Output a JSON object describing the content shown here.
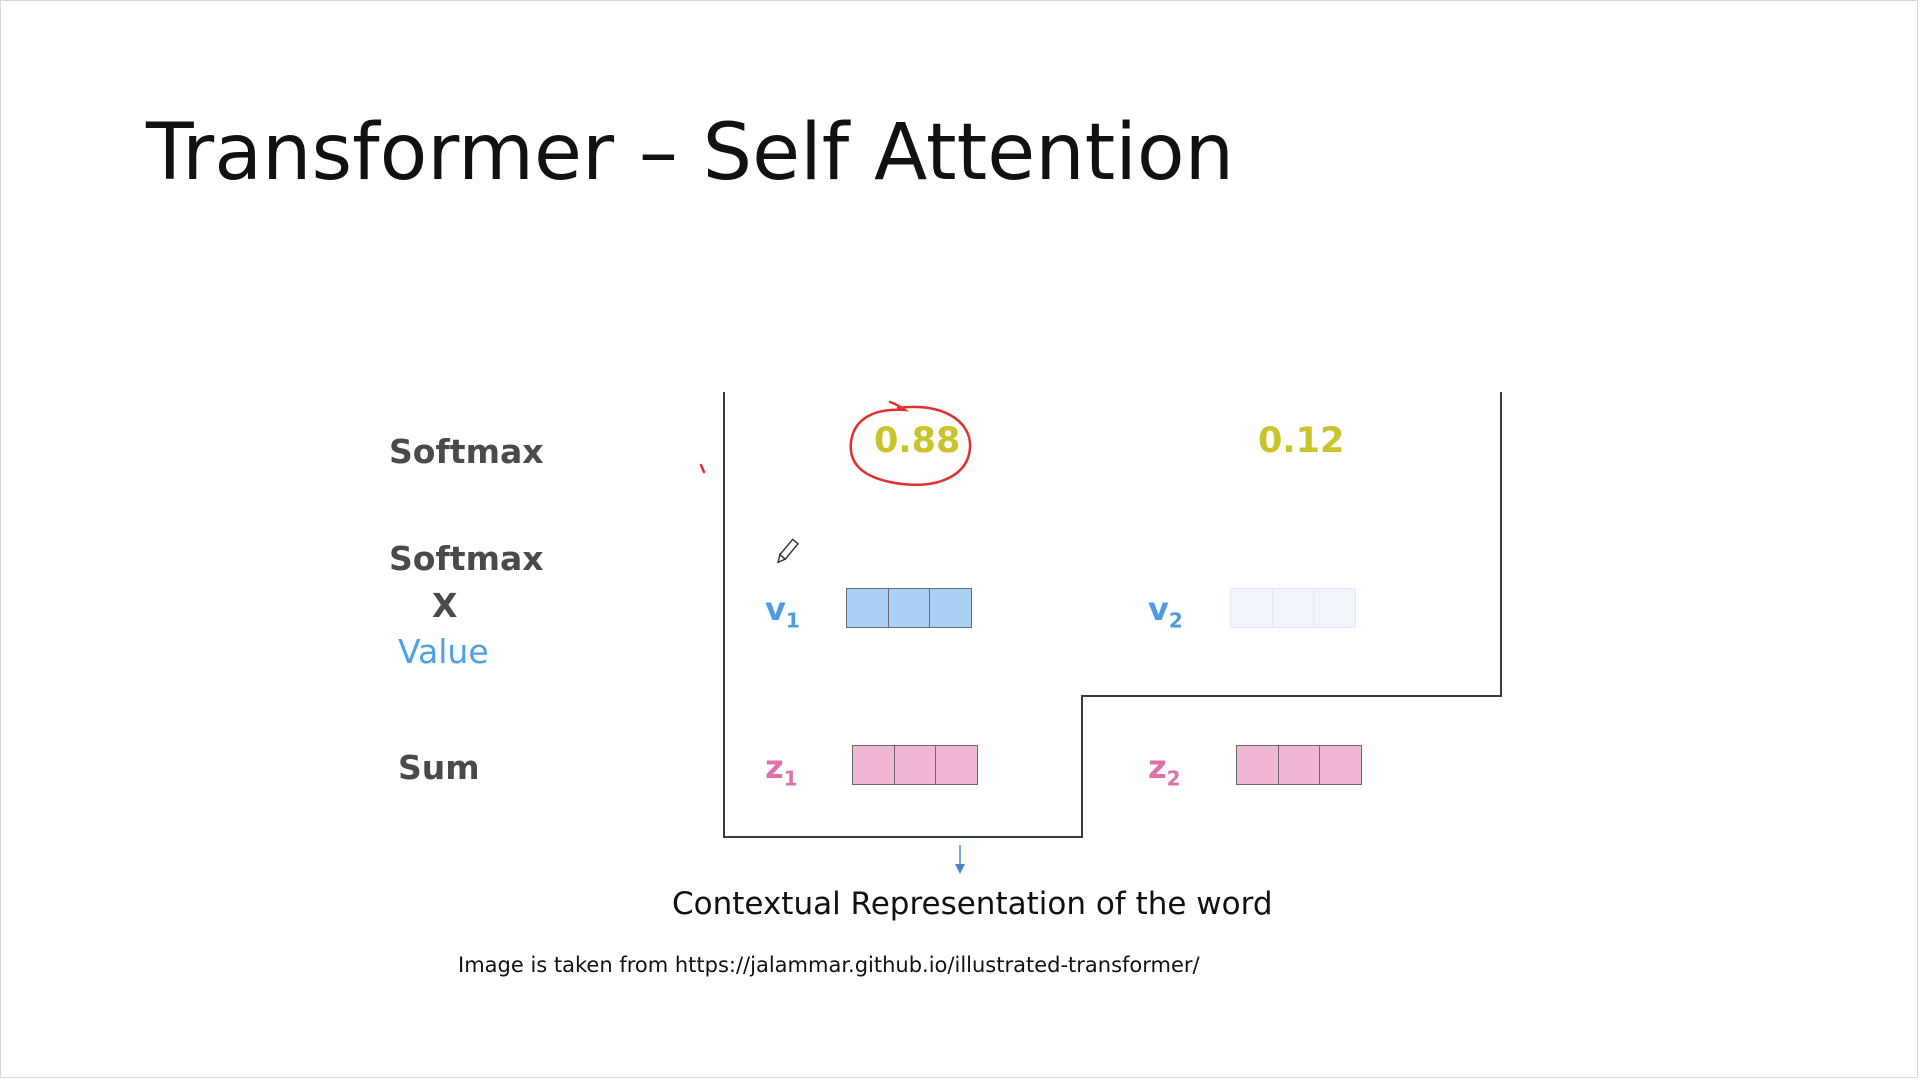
{
  "slide": {
    "title": "Transformer – Self Attention"
  },
  "rows": {
    "softmax_label": "Softmax",
    "product_label_line1": "Softmax",
    "product_label_line2": "X",
    "product_label_line3": "Value",
    "sum_label": "Sum"
  },
  "words": [
    {
      "weight": "0.88",
      "value_name": "v",
      "value_sub": "1",
      "sum_name": "z",
      "sum_sub": "1",
      "highlighted": true
    },
    {
      "weight": "0.12",
      "value_name": "v",
      "value_sub": "2",
      "sum_name": "z",
      "sum_sub": "2",
      "highlighted": false
    }
  ],
  "caption": "Contextual Representation of the word",
  "source": "Image is taken from https://jalammar.github.io/illustrated-transformer/",
  "colors": {
    "weight_text": "#c8c42a",
    "value_vector_strong": "#a9d0f5",
    "value_vector_faint": "#f1f6fc",
    "sum_vector": "#f0b6d6",
    "annotation_red": "#e03030",
    "arrow_blue": "#4a86c8"
  }
}
